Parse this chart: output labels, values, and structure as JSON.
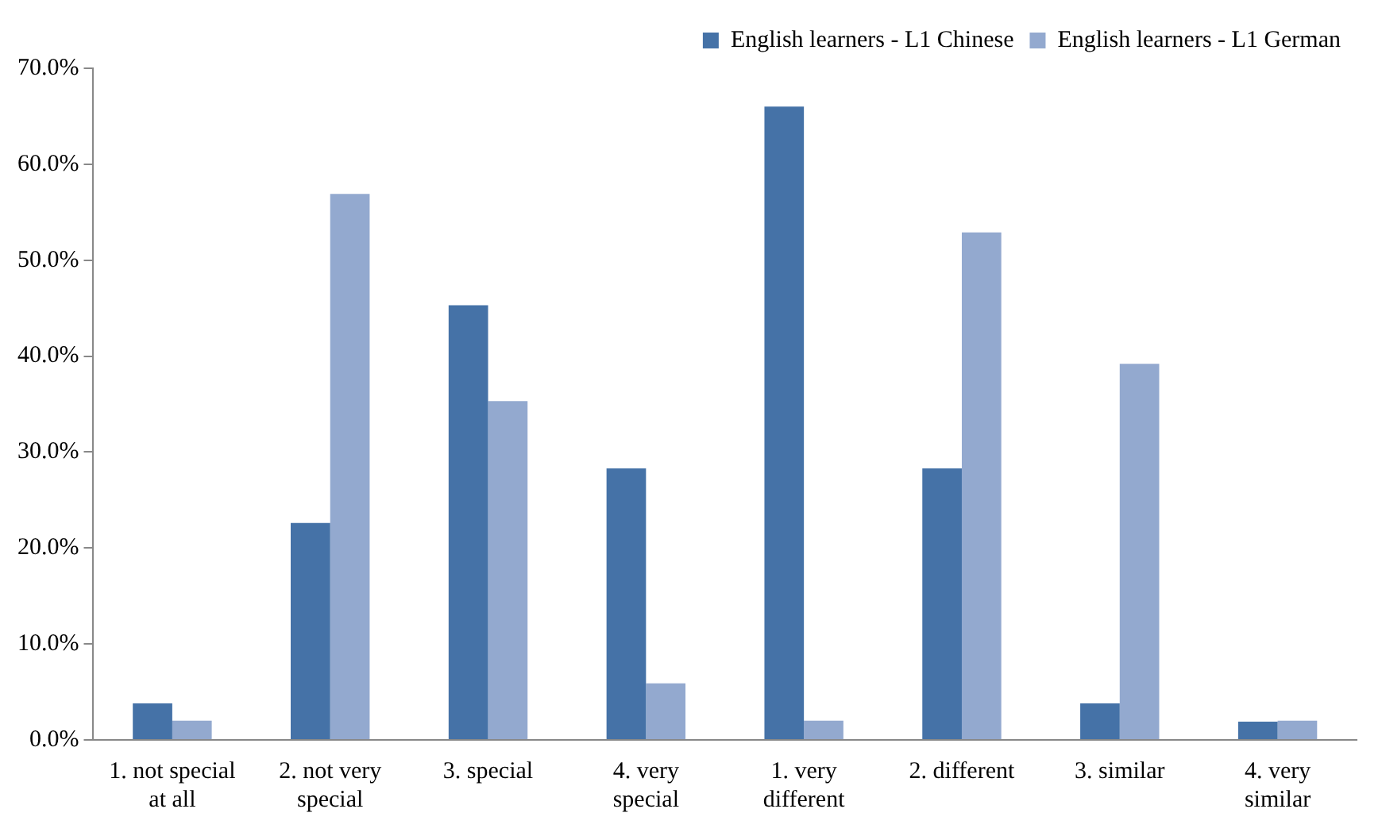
{
  "chart_data": {
    "type": "bar",
    "categories": [
      "1. not special at all",
      "2. not very special",
      "3. special",
      "4. very special",
      "1. very different",
      "2. different",
      "3. similar",
      "4. very similar"
    ],
    "series": [
      {
        "name": "English learners - L1 Chinese",
        "color": "#4572a7",
        "values": [
          3.8,
          22.6,
          45.3,
          28.3,
          66.0,
          28.3,
          3.8,
          1.9
        ]
      },
      {
        "name": "English learners - L1 German",
        "color": "#93a9cf",
        "values": [
          2.0,
          56.9,
          35.3,
          5.9,
          2.0,
          52.9,
          39.2,
          2.0
        ]
      }
    ],
    "ylim": [
      0,
      70
    ],
    "yticks": [
      {
        "value": 0,
        "label": "0.0%"
      },
      {
        "value": 10,
        "label": "10.0%"
      },
      {
        "value": 20,
        "label": "20.0%"
      },
      {
        "value": 30,
        "label": "30.0%"
      },
      {
        "value": 40,
        "label": "40.0%"
      },
      {
        "value": 50,
        "label": "50.0%"
      },
      {
        "value": 60,
        "label": "60.0%"
      },
      {
        "value": 70,
        "label": "70.0%"
      }
    ],
    "grid": false,
    "legend": "top right"
  }
}
